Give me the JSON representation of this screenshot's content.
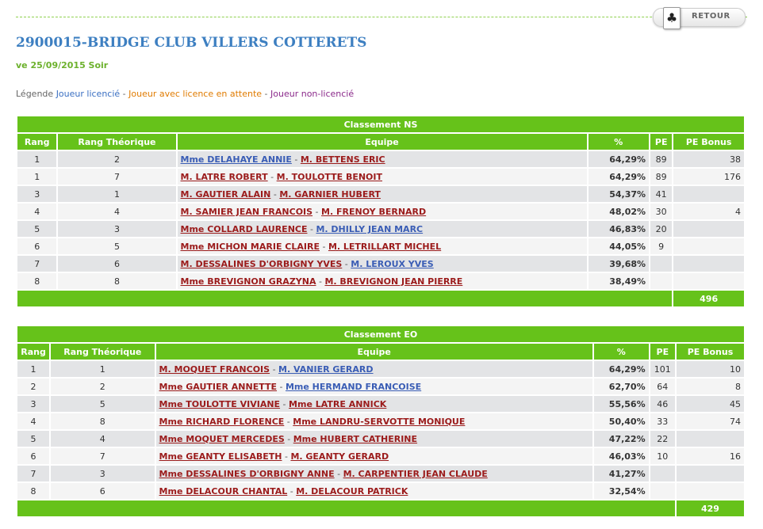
{
  "header": {
    "retour_label": "RETOUR",
    "retour_icon": "club-card-icon",
    "title": "2900015-BRIDGE CLUB VILLERS COTTERETS",
    "session": "ve 25/09/2015 Soir"
  },
  "legend": {
    "prefix": "Légende",
    "licensed": "Joueur licencié",
    "pending": "Joueur avec licence en attente",
    "unlicensed": "Joueur non-licencié",
    "sep": " - ",
    "colors": {
      "licensed": "#3a6fc2",
      "pending": "#e07b00",
      "unlicensed": "#8b2a8b"
    }
  },
  "columns": {
    "rang": "Rang",
    "rang_theorique": "Rang Théorique",
    "equipe": "Equipe",
    "pct": "%",
    "pe": "PE",
    "pe_bonus": "PE Bonus"
  },
  "ns": {
    "title": "Classement NS",
    "total_pe_bonus": "496",
    "rows": [
      {
        "rang": "1",
        "theo": "2",
        "p1": "Mme DELAHAYE ANNIE",
        "p1s": "lic",
        "p2": "M. BETTENS ERIC",
        "p2s": "non",
        "pct": "64,29%",
        "pe": "89",
        "bonus": "38"
      },
      {
        "rang": "1",
        "theo": "7",
        "p1": "M. LATRE ROBERT",
        "p1s": "non",
        "p2": "M. TOULOTTE BENOIT",
        "p2s": "non",
        "pct": "64,29%",
        "pe": "89",
        "bonus": "176"
      },
      {
        "rang": "3",
        "theo": "1",
        "p1": "M. GAUTIER ALAIN",
        "p1s": "non",
        "p2": "M. GARNIER HUBERT",
        "p2s": "non",
        "pct": "54,37%",
        "pe": "41",
        "bonus": ""
      },
      {
        "rang": "4",
        "theo": "4",
        "p1": "M. SAMIER JEAN FRANCOIS",
        "p1s": "non",
        "p2": "M. FRENOY BERNARD",
        "p2s": "non",
        "pct": "48,02%",
        "pe": "30",
        "bonus": "4"
      },
      {
        "rang": "5",
        "theo": "3",
        "p1": "Mme COLLARD LAURENCE",
        "p1s": "non",
        "p2": "M. DHILLY JEAN MARC",
        "p2s": "lic",
        "pct": "46,83%",
        "pe": "20",
        "bonus": ""
      },
      {
        "rang": "6",
        "theo": "5",
        "p1": "Mme MICHON MARIE CLAIRE",
        "p1s": "non",
        "p2": "M. LETRILLART MICHEL",
        "p2s": "non",
        "pct": "44,05%",
        "pe": "9",
        "bonus": ""
      },
      {
        "rang": "7",
        "theo": "6",
        "p1": "M. DESSALINES D'ORBIGNY YVES",
        "p1s": "non",
        "p2": "M. LEROUX YVES",
        "p2s": "lic",
        "pct": "39,68%",
        "pe": "",
        "bonus": ""
      },
      {
        "rang": "8",
        "theo": "8",
        "p1": "Mme BREVIGNON GRAZYNA",
        "p1s": "non",
        "p2": "M. BREVIGNON JEAN PIERRE",
        "p2s": "non",
        "pct": "38,49%",
        "pe": "",
        "bonus": ""
      }
    ]
  },
  "eo": {
    "title": "Classement EO",
    "total_pe_bonus": "429",
    "rows": [
      {
        "rang": "1",
        "theo": "1",
        "p1": "M. MOQUET FRANCOIS",
        "p1s": "non",
        "p2": "M. VANIER GERARD",
        "p2s": "lic",
        "pct": "64,29%",
        "pe": "101",
        "bonus": "10"
      },
      {
        "rang": "2",
        "theo": "2",
        "p1": "Mme GAUTIER ANNETTE",
        "p1s": "non",
        "p2": "Mme HERMAND FRANCOISE",
        "p2s": "lic",
        "pct": "62,70%",
        "pe": "64",
        "bonus": "8"
      },
      {
        "rang": "3",
        "theo": "5",
        "p1": "Mme TOULOTTE VIVIANE",
        "p1s": "non",
        "p2": "Mme LATRE ANNICK",
        "p2s": "non",
        "pct": "55,56%",
        "pe": "46",
        "bonus": "45"
      },
      {
        "rang": "4",
        "theo": "8",
        "p1": "Mme RICHARD FLORENCE",
        "p1s": "non",
        "p2": "Mme LANDRU-SERVOTTE MONIQUE",
        "p2s": "non",
        "pct": "50,40%",
        "pe": "33",
        "bonus": "74"
      },
      {
        "rang": "5",
        "theo": "4",
        "p1": "Mme MOQUET MERCEDES",
        "p1s": "non",
        "p2": "Mme HUBERT CATHERINE",
        "p2s": "non",
        "pct": "47,22%",
        "pe": "22",
        "bonus": ""
      },
      {
        "rang": "6",
        "theo": "7",
        "p1": "Mme GEANTY ELISABETH",
        "p1s": "non",
        "p2": "M. GEANTY GERARD",
        "p2s": "non",
        "pct": "46,03%",
        "pe": "10",
        "bonus": "16"
      },
      {
        "rang": "7",
        "theo": "3",
        "p1": "Mme DESSALINES D'ORBIGNY ANNE",
        "p1s": "non",
        "p2": "M. CARPENTIER JEAN CLAUDE",
        "p2s": "non",
        "pct": "41,27%",
        "pe": "",
        "bonus": ""
      },
      {
        "rang": "8",
        "theo": "6",
        "p1": "Mme DELACOUR CHANTAL",
        "p1s": "non",
        "p2": "M. DELACOUR PATRICK",
        "p2s": "non",
        "pct": "32,54%",
        "pe": "",
        "bonus": ""
      }
    ]
  }
}
